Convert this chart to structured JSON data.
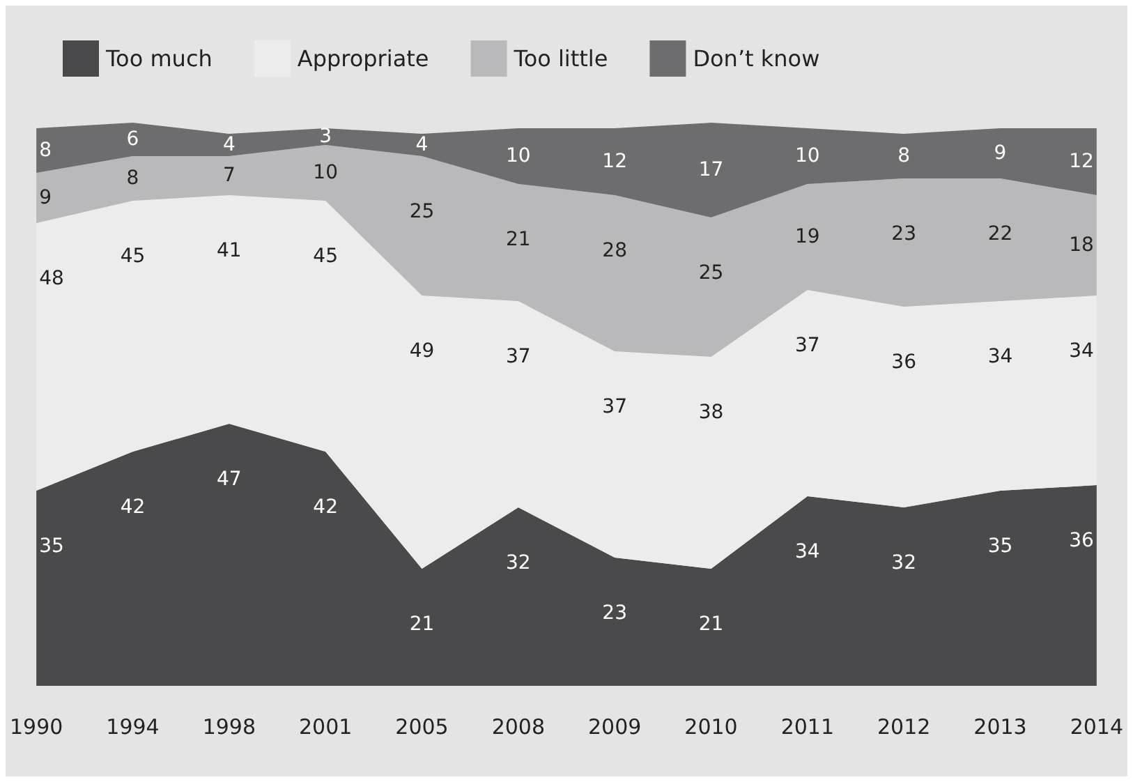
{
  "chart_data": {
    "type": "area",
    "stacked": true,
    "data_labels": true,
    "legend": "top left",
    "grid": false,
    "tick_labels": "x",
    "categories": [
      "1990",
      "1994",
      "1998",
      "2001",
      "2005",
      "2008",
      "2009",
      "2010",
      "2011",
      "2012",
      "2013",
      "2014"
    ],
    "series": [
      {
        "name": "Too much",
        "color": "#4a4a4c",
        "values": [
          35,
          42,
          47,
          42,
          21,
          32,
          23,
          21,
          34,
          32,
          35,
          36
        ]
      },
      {
        "name": "Appropriate",
        "color": "#ececec",
        "values": [
          48,
          45,
          41,
          45,
          49,
          37,
          37,
          38,
          37,
          36,
          34,
          34
        ]
      },
      {
        "name": "Too little",
        "color": "#b9b9bb",
        "values": [
          9,
          8,
          7,
          10,
          25,
          21,
          28,
          25,
          19,
          23,
          22,
          18
        ]
      },
      {
        "name": "Don’t know",
        "color": "#6d6d6f",
        "values": [
          8,
          6,
          4,
          3,
          4,
          10,
          12,
          17,
          10,
          8,
          9,
          12
        ]
      }
    ]
  }
}
